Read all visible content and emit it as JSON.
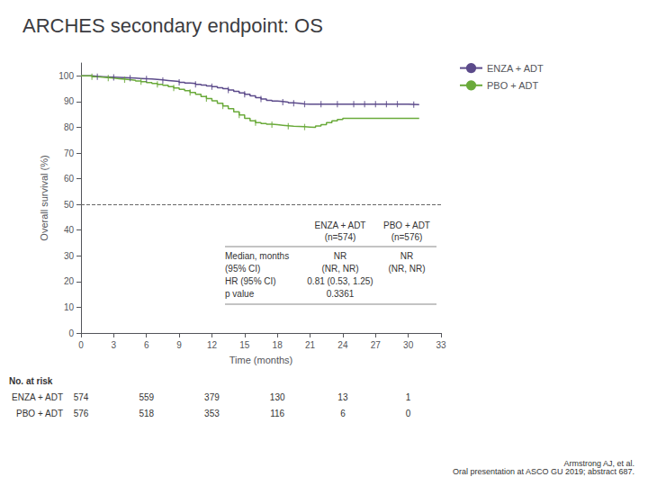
{
  "chart_data": {
    "type": "step",
    "title": "ARCHES secondary endpoint: OS",
    "x_label": "Time (months)",
    "y_label": "Overall survival (%)",
    "xlim": [
      0,
      33
    ],
    "ylim": [
      0,
      105
    ],
    "xticks": [
      0,
      3,
      6,
      9,
      12,
      15,
      18,
      21,
      24,
      27,
      30,
      33
    ],
    "yticks": [
      0,
      10,
      20,
      30,
      40,
      50,
      60,
      70,
      80,
      90,
      100
    ],
    "grid": false,
    "legend": "right",
    "series": [
      {
        "name": "ENZA + ADT",
        "color": "#5b4a8a",
        "x": [
          0,
          0.5,
          1,
          1.5,
          2,
          2.5,
          3,
          3.5,
          4,
          4.5,
          5,
          5.5,
          6,
          6.5,
          7,
          7.5,
          8,
          8.5,
          9,
          9.5,
          10,
          10.5,
          11,
          11.5,
          12,
          12.5,
          13,
          13.5,
          14,
          14.5,
          15,
          15.5,
          16,
          16.5,
          17,
          17.5,
          18,
          18.5,
          19,
          19.5,
          20,
          20.5,
          21,
          21.5,
          22,
          22.5,
          23,
          23.5,
          24,
          25,
          26,
          27,
          28,
          29,
          30,
          31
        ],
        "values": [
          100,
          100,
          99.8,
          99.7,
          99.6,
          99.5,
          99.4,
          99.3,
          99.2,
          99.1,
          99.0,
          98.9,
          98.8,
          98.6,
          98.4,
          98.2,
          98.0,
          97.8,
          97.5,
          97.2,
          97.0,
          96.7,
          96.4,
          96.1,
          95.8,
          95.4,
          95.0,
          94.5,
          94.0,
          93.4,
          92.8,
          92.2,
          91.5,
          91.0,
          90.5,
          90.2,
          90.0,
          89.8,
          89.5,
          89.3,
          89.1,
          89.0,
          89.0,
          89.0,
          89.0,
          89.0,
          89.0,
          89.0,
          89.0,
          89.0,
          89.0,
          89.0,
          89.0,
          89.0,
          88.8,
          88.8
        ],
        "censor_x": [
          1.5,
          3.0,
          4.5,
          6.0,
          7.5,
          9.0,
          10.5,
          12.0,
          13.5,
          15.0,
          16.5,
          18.5,
          19.5,
          20.5,
          22.0,
          23.5,
          25.0,
          26.0,
          27.0,
          28.0,
          29.0,
          30.5
        ],
        "censor_y": [
          99.7,
          99.4,
          99.1,
          98.8,
          98.2,
          97.5,
          96.7,
          95.8,
          94.5,
          92.8,
          91.0,
          89.8,
          89.3,
          89.0,
          89.0,
          89.0,
          89.0,
          89.0,
          89.0,
          89.0,
          89.0,
          88.8
        ]
      },
      {
        "name": "PBO + ADT",
        "color": "#6aaa3a",
        "x": [
          0,
          0.5,
          1,
          1.5,
          2,
          2.5,
          3,
          3.5,
          4,
          4.5,
          5,
          5.5,
          6,
          6.5,
          7,
          7.5,
          8,
          8.5,
          9,
          9.5,
          10,
          10.5,
          11,
          11.5,
          12,
          12.5,
          13,
          13.5,
          14,
          14.5,
          15,
          15.5,
          16,
          16.5,
          17,
          17.5,
          18,
          18.5,
          19,
          19.5,
          20,
          20.5,
          21,
          21.5,
          22,
          22.5,
          23,
          23.5,
          24,
          25,
          26,
          27,
          28,
          29,
          30,
          31
        ],
        "values": [
          100,
          100,
          99.7,
          99.5,
          99.3,
          99.1,
          98.9,
          98.7,
          98.5,
          98.3,
          98.0,
          97.7,
          97.4,
          97.0,
          96.7,
          96.3,
          95.8,
          95.3,
          94.8,
          94.2,
          93.5,
          92.8,
          92.0,
          91.2,
          90.3,
          89.3,
          88.3,
          87.2,
          86.0,
          84.8,
          83.5,
          82.5,
          81.8,
          81.5,
          81.2,
          81.0,
          80.8,
          80.6,
          80.4,
          80.3,
          80.2,
          80.1,
          80.0,
          80.5,
          81.0,
          81.8,
          82.5,
          83.0,
          83.5,
          83.5,
          83.5,
          83.5,
          83.5,
          83.5,
          83.5,
          83.5
        ],
        "censor_x": [
          1.0,
          2.5,
          4.0,
          5.5,
          7.0,
          8.5,
          10.0,
          11.5,
          13.0,
          14.5,
          16.0,
          17.5,
          19.0,
          20.5
        ],
        "censor_y": [
          99.7,
          99.1,
          98.5,
          97.7,
          96.7,
          95.3,
          93.5,
          91.2,
          88.3,
          84.8,
          81.8,
          81.0,
          80.4,
          80.1
        ]
      }
    ],
    "annotations": [
      {
        "type": "hline",
        "y": 50,
        "color": "#666666",
        "line_style": "dashed"
      }
    ],
    "table": {
      "columns": [
        [
          "ENZA + ADT",
          "(n=574)"
        ],
        [
          "PBO + ADT",
          "(n=576)"
        ]
      ],
      "rows": [
        {
          "label": "Median, months",
          "cells": [
            "NR",
            "NR"
          ]
        },
        {
          "label": "(95% CI)",
          "cells": [
            "(NR, NR)",
            "(NR, NR)"
          ]
        },
        {
          "label": "HR (95% CI)",
          "cells": [
            "0.81 (0.53, 1.25)"
          ]
        },
        {
          "label": "p value",
          "cells": [
            "0.3361"
          ]
        }
      ]
    },
    "at_risk": {
      "label": "No. at risk",
      "x": [
        0,
        6,
        12,
        18,
        24,
        30
      ],
      "rows": [
        {
          "name": "ENZA + ADT",
          "values": [
            574,
            559,
            379,
            130,
            13,
            1
          ]
        },
        {
          "name": "PBO + ADT",
          "values": [
            576,
            518,
            353,
            116,
            6,
            0
          ]
        }
      ]
    },
    "citation": "Armstrong AJ, et al.\nOral presentation at ASCO GU 2019; abstract 687."
  }
}
